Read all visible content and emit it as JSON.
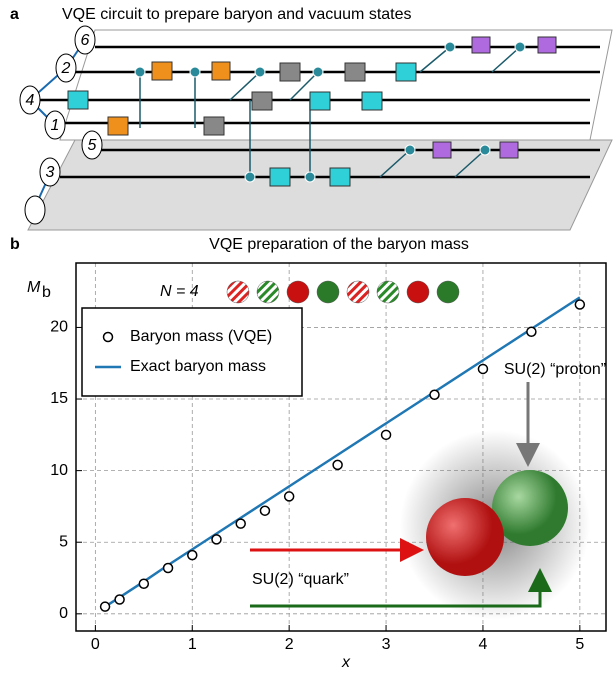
{
  "panel_a": {
    "label": "a",
    "title": "VQE circuit to prepare baryon and vacuum states",
    "qubit_labels": [
      "6",
      "2",
      "4",
      "1",
      "5",
      "3"
    ]
  },
  "chart_data": {
    "type": "scatter",
    "label": "b",
    "title": "VQE preparation of the baryon mass",
    "xlabel": "x",
    "ylabel": "M",
    "ylabel_sub": "b",
    "x": [
      0.1,
      0.25,
      0.5,
      0.75,
      1,
      1.25,
      1.5,
      1.75,
      2,
      2.5,
      3,
      3.5,
      4,
      4.5,
      5
    ],
    "series": [
      {
        "name": "Baryon mass (VQE)",
        "mode": "markers",
        "color": "#000000",
        "values": [
          0.5,
          1.0,
          2.1,
          3.2,
          4.1,
          5.2,
          6.3,
          7.2,
          8.2,
          10.4,
          12.5,
          15.3,
          17.1,
          19.7,
          21.6
        ]
      },
      {
        "name": "Exact baryon mass",
        "mode": "line",
        "color": "#1f77b4",
        "values": [
          0.5,
          1.15,
          2.25,
          3.4,
          4.5,
          5.6,
          6.7,
          7.8,
          8.9,
          11.1,
          13.3,
          15.5,
          17.7,
          19.9,
          22.1
        ]
      }
    ],
    "xlim": [
      -0.2,
      5.27
    ],
    "ylim": [
      -1.2,
      24.5
    ],
    "xticks": [
      0,
      1,
      2,
      3,
      4,
      5
    ],
    "yticks": [
      0,
      5,
      10,
      15,
      20
    ],
    "grid": true,
    "annotations": {
      "n": "N = 4",
      "proton": "SU(2) “proton”",
      "quark": "SU(2) “quark”"
    }
  }
}
